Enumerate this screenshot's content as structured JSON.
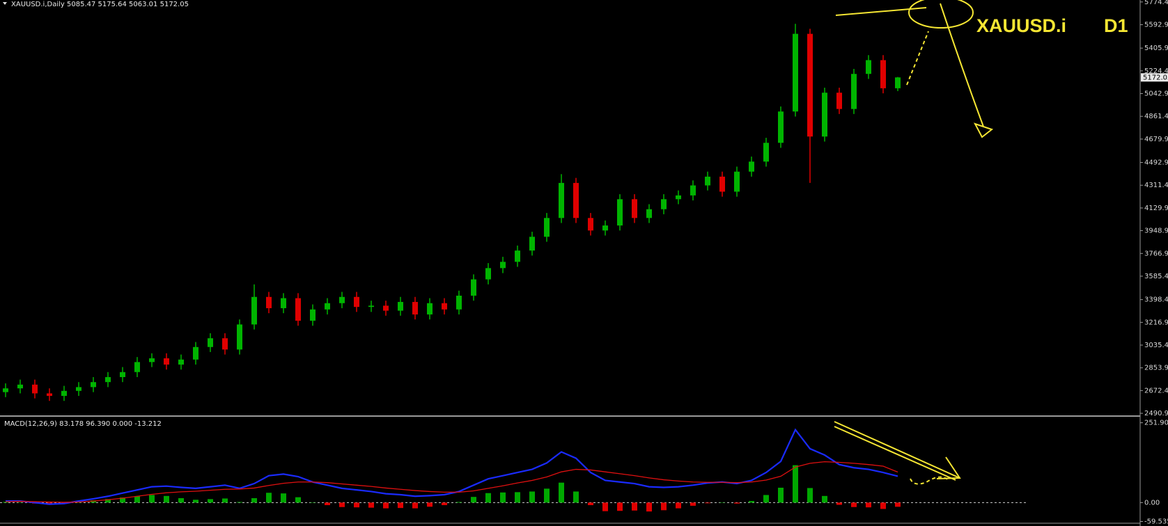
{
  "chart_data": [
    {
      "type": "candlestick",
      "title": "XAUUSD.i,Daily  5085.47 5175.64 5063.01 5172.05",
      "annotations": [
        "XAUUSD.i",
        "D1"
      ],
      "up_color": "#00b400",
      "down_color": "#e00000",
      "open": [
        2660,
        2690,
        2720,
        2650,
        2630,
        2670,
        2700,
        2740,
        2780,
        2820,
        2900,
        2930,
        2880,
        2920,
        3020,
        3090,
        3000,
        3200,
        3420,
        3330,
        3410,
        3230,
        3320,
        3370,
        3420,
        3340,
        3350,
        3310,
        3380,
        3280,
        3370,
        3320,
        3430,
        3560,
        3650,
        3700,
        3790,
        3900,
        4050,
        4330,
        4050,
        3950,
        3990,
        4200,
        4050,
        4120,
        4200,
        4230,
        4310,
        4380,
        4260,
        4420,
        4500,
        4650,
        4900,
        5520,
        4700,
        5050,
        4920,
        5200,
        5310,
        5085.47
      ],
      "high": [
        2730,
        2760,
        2760,
        2690,
        2710,
        2740,
        2780,
        2820,
        2860,
        2940,
        2970,
        2970,
        2960,
        3060,
        3130,
        3130,
        3240,
        3520,
        3460,
        3450,
        3450,
        3360,
        3410,
        3460,
        3460,
        3390,
        3390,
        3420,
        3420,
        3410,
        3410,
        3470,
        3600,
        3690,
        3740,
        3830,
        3940,
        4090,
        4400,
        4370,
        4090,
        4030,
        4240,
        4240,
        4160,
        4240,
        4270,
        4350,
        4420,
        4420,
        4460,
        4540,
        4690,
        4940,
        5600,
        5560,
        5090,
        5090,
        5240,
        5350,
        5350,
        5175.64
      ],
      "low": [
        2620,
        2650,
        2610,
        2590,
        2590,
        2630,
        2660,
        2700,
        2740,
        2780,
        2860,
        2840,
        2840,
        2880,
        2980,
        2960,
        2960,
        3160,
        3290,
        3290,
        3190,
        3190,
        3280,
        3330,
        3300,
        3300,
        3270,
        3270,
        3240,
        3240,
        3280,
        3280,
        3390,
        3520,
        3610,
        3660,
        3750,
        3860,
        4010,
        4010,
        3910,
        3910,
        3950,
        4010,
        4010,
        4080,
        4160,
        4190,
        4270,
        4220,
        4220,
        4380,
        4460,
        4610,
        4860,
        4330,
        4660,
        4880,
        4880,
        5160,
        5045,
        5063.01
      ],
      "close": [
        2690,
        2720,
        2650,
        2630,
        2670,
        2700,
        2740,
        2780,
        2820,
        2900,
        2930,
        2880,
        2920,
        3020,
        3090,
        3000,
        3200,
        3420,
        3330,
        3410,
        3230,
        3320,
        3370,
        3420,
        3340,
        3350,
        3310,
        3380,
        3280,
        3370,
        3320,
        3430,
        3560,
        3650,
        3700,
        3790,
        3900,
        4050,
        4330,
        4050,
        3950,
        3990,
        4200,
        4050,
        4120,
        4200,
        4230,
        4310,
        4380,
        4260,
        4420,
        4500,
        4650,
        4900,
        5520,
        4700,
        5050,
        4920,
        5200,
        5310,
        5085.47,
        5172.05
      ],
      "last_price": {
        "value": 5172.05,
        "label": "5172.05"
      },
      "ylim": [
        2480,
        5790
      ],
      "yticks": [
        {
          "value": 5774.4,
          "label": "5774.40"
        },
        {
          "value": 5592.9,
          "label": "5592.90"
        },
        {
          "value": 5405.9,
          "label": "5405.90"
        },
        {
          "value": 5224.4,
          "label": "5224.40"
        },
        {
          "value": 5042.9,
          "label": "5042.90"
        },
        {
          "value": 4861.4,
          "label": "4861.40"
        },
        {
          "value": 4679.9,
          "label": "4679.90"
        },
        {
          "value": 4492.9,
          "label": "4492.90"
        },
        {
          "value": 4311.4,
          "label": "4311.40"
        },
        {
          "value": 4129.9,
          "label": "4129.90"
        },
        {
          "value": 3948.9,
          "label": "3948.90"
        },
        {
          "value": 3766.9,
          "label": "3766.90"
        },
        {
          "value": 3585.4,
          "label": "3585.40"
        },
        {
          "value": 3398.4,
          "label": "3398.40"
        },
        {
          "value": 3216.9,
          "label": "3216.90"
        },
        {
          "value": 3035.4,
          "label": "3035.40"
        },
        {
          "value": 2853.9,
          "label": "2853.90"
        },
        {
          "value": 2672.4,
          "label": "2672.40"
        },
        {
          "value": 2490.9,
          "label": "2490.90"
        }
      ]
    },
    {
      "type": "macd",
      "title": "MACD(12,26,9) 83.178 96.390 0.000 -13.212",
      "series": [
        {
          "color": "#1a2bff",
          "values": [
            5,
            5,
            0,
            -5,
            -3,
            5,
            12,
            20,
            30,
            40,
            50,
            52,
            48,
            45,
            50,
            55,
            45,
            60,
            85,
            90,
            82,
            65,
            55,
            45,
            40,
            35,
            28,
            25,
            20,
            22,
            25,
            35,
            55,
            75,
            85,
            95,
            105,
            125,
            160,
            140,
            95,
            70,
            65,
            60,
            50,
            48,
            50,
            55,
            62,
            65,
            60,
            70,
            95,
            130,
            230,
            170,
            150,
            120,
            110,
            105,
            95,
            83.178
          ]
        },
        {
          "color": "#e01010",
          "values": [
            3,
            4,
            3,
            2,
            1,
            2,
            5,
            9,
            14,
            20,
            26,
            31,
            34,
            36,
            39,
            42,
            43,
            46,
            54,
            61,
            65,
            65,
            63,
            59,
            55,
            51,
            46,
            42,
            38,
            35,
            33,
            33,
            37,
            45,
            53,
            62,
            70,
            81,
            97,
            105,
            103,
            97,
            91,
            85,
            78,
            72,
            68,
            65,
            64,
            64,
            63,
            65,
            71,
            83,
            112,
            124,
            129,
            127,
            124,
            120,
            115,
            96.39
          ]
        }
      ],
      "histogram": {
        "up_color": "#00a800",
        "down_color": "#e00000",
        "values": [
          2,
          1,
          -3,
          -7,
          -4,
          3,
          7,
          11,
          16,
          20,
          24,
          21,
          14,
          9,
          11,
          13,
          2,
          14,
          31,
          29,
          17,
          0,
          -8,
          -14,
          -15,
          -16,
          -18,
          -17,
          -18,
          -13,
          -8,
          2,
          18,
          30,
          32,
          33,
          35,
          44,
          63,
          35,
          -8,
          -27,
          -26,
          -25,
          -28,
          -24,
          -18,
          -10,
          -2,
          1,
          -3,
          5,
          24,
          47,
          118,
          46,
          21,
          -7,
          -14,
          -15,
          -20,
          -13.212
        ]
      },
      "ylim": [
        -65,
        262
      ],
      "yticks": [
        251.909,
        {
          "value": 0,
          "label": "0.00"
        },
        -59.535
      ]
    }
  ]
}
